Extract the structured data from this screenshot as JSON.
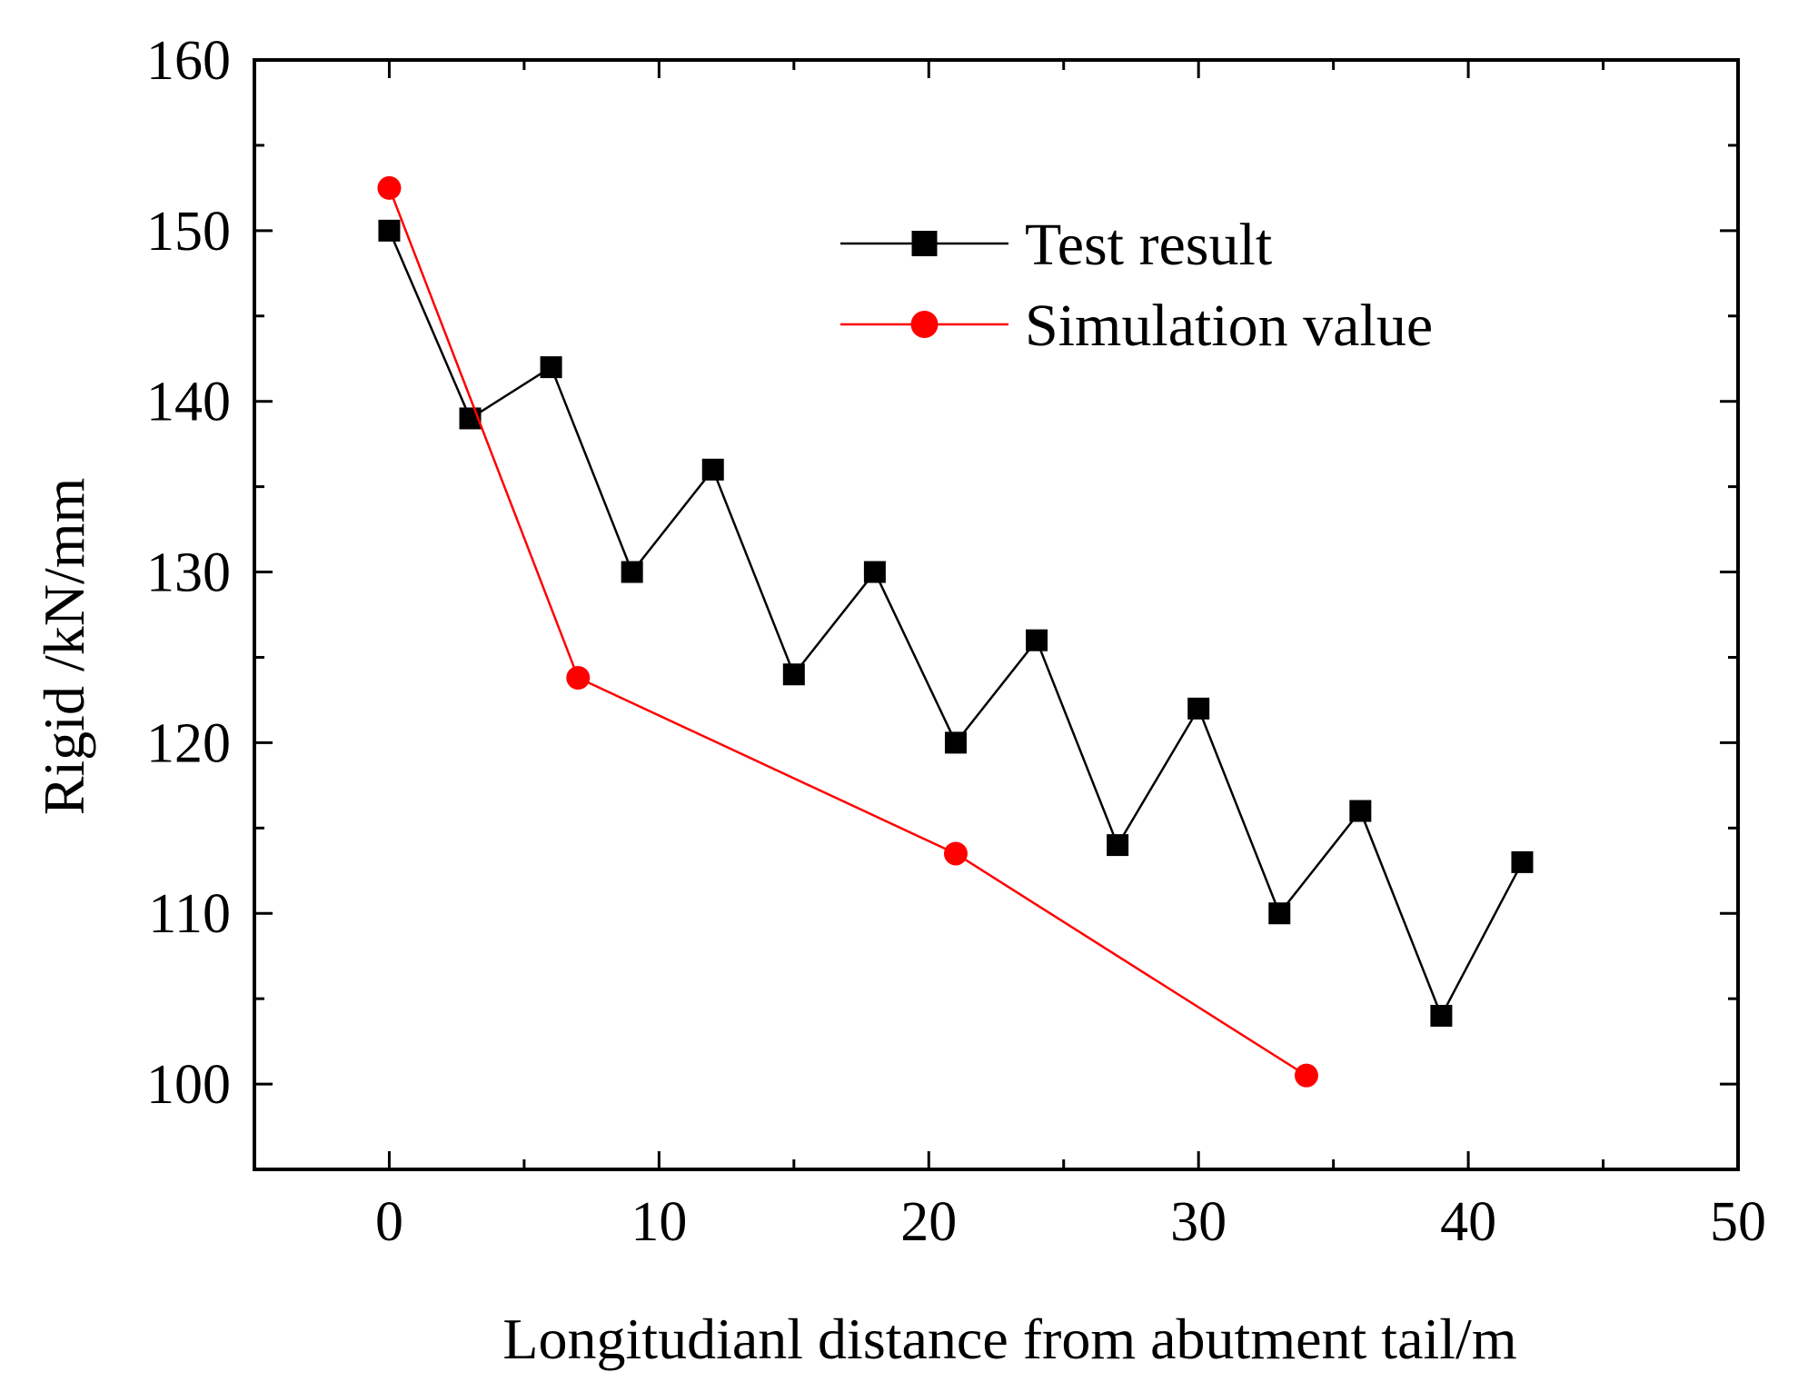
{
  "chart_data": {
    "type": "line",
    "title": "",
    "xlabel": "Longitudianl distance from abutment tail/m",
    "ylabel": "Rigid /kN/mm",
    "xlim": [
      -5,
      50
    ],
    "ylim": [
      95,
      160
    ],
    "x_ticks": [
      0,
      10,
      20,
      30,
      40,
      50
    ],
    "y_ticks": [
      100,
      110,
      120,
      130,
      140,
      150,
      160
    ],
    "x_tick_labels": [
      "0",
      "10",
      "20",
      "30",
      "40",
      "50"
    ],
    "y_tick_labels": [
      "100",
      "110",
      "120",
      "130",
      "140",
      "150",
      "160"
    ],
    "grid": false,
    "legend_position": "top-right",
    "series": [
      {
        "name": "Test result",
        "marker": "square",
        "color": "#000000",
        "x": [
          0,
          3,
          6,
          9,
          12,
          15,
          18,
          21,
          24,
          27,
          30,
          33,
          36,
          39,
          42
        ],
        "y": [
          150,
          139,
          142,
          130,
          136,
          124,
          130,
          120,
          126,
          114,
          122,
          110,
          116,
          104,
          113
        ]
      },
      {
        "name": "Simulation value",
        "marker": "circle",
        "color": "#ff0000",
        "x": [
          0,
          7,
          21,
          34
        ],
        "y": [
          152.5,
          123.8,
          113.5,
          100.5
        ]
      }
    ]
  }
}
